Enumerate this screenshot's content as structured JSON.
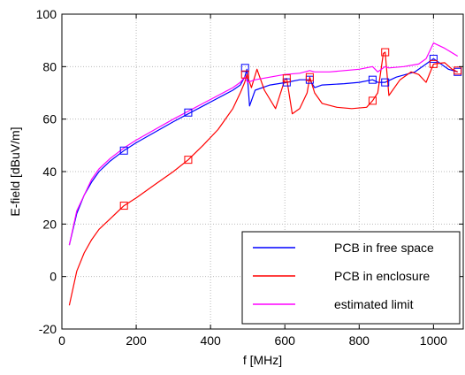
{
  "chart_data": {
    "type": "line",
    "title": "",
    "xlabel": "f [MHz]",
    "ylabel": "E-field [dBuV/m]",
    "xlim": [
      0,
      1080
    ],
    "ylim": [
      -20,
      100
    ],
    "xticks": [
      0,
      200,
      400,
      600,
      800,
      1000
    ],
    "yticks": [
      -20,
      0,
      20,
      40,
      60,
      80,
      100
    ],
    "grid": true,
    "legend_position": "bottom-right",
    "series": [
      {
        "name": "PCB in free space",
        "color": "#0000ff",
        "x": [
          20,
          40,
          60,
          80,
          100,
          130,
          167,
          200,
          250,
          300,
          340,
          380,
          420,
          460,
          480,
          492,
          498,
          505,
          520,
          560,
          605,
          640,
          667,
          680,
          700,
          760,
          800,
          836,
          850,
          870,
          900,
          950,
          1000,
          1040,
          1065
        ],
        "y": [
          12,
          24,
          31,
          36,
          40,
          44,
          48,
          51,
          55,
          59,
          62,
          65,
          68,
          71,
          73,
          76,
          79,
          65,
          71,
          73,
          74,
          75,
          75,
          72,
          73,
          73.5,
          74,
          75,
          74,
          74,
          76,
          78,
          83,
          79,
          78
        ],
        "markers_x": [
          167,
          340,
          493,
          605,
          667,
          836,
          870,
          1000,
          1065
        ],
        "markers_y": [
          48,
          62.5,
          79.5,
          74,
          75,
          75,
          74,
          83,
          78
        ]
      },
      {
        "name": "PCB in enclosure",
        "color": "#ff0000",
        "x": [
          20,
          40,
          60,
          80,
          100,
          130,
          167,
          200,
          250,
          300,
          340,
          380,
          420,
          460,
          480,
          492,
          498,
          510,
          525,
          545,
          575,
          600,
          605,
          620,
          640,
          660,
          667,
          680,
          700,
          740,
          780,
          820,
          836,
          850,
          865,
          870,
          880,
          910,
          940,
          960,
          980,
          1000,
          1030,
          1050,
          1065
        ],
        "y": [
          -11,
          2,
          9,
          14,
          18,
          22,
          27,
          30,
          35,
          40,
          44.5,
          50,
          56,
          64,
          70,
          74,
          77,
          72,
          79,
          71,
          64,
          75,
          75.5,
          62,
          64,
          70,
          76,
          70,
          66,
          64.5,
          64,
          64.5,
          67,
          70,
          85,
          85.5,
          69,
          75,
          78,
          77,
          74,
          81,
          81.5,
          79,
          78
        ],
        "markers_x": [
          167,
          340,
          493,
          605,
          667,
          836,
          870,
          1000,
          1065
        ],
        "markers_y": [
          27,
          44.5,
          77,
          75.5,
          76,
          67,
          85.5,
          81,
          78.5
        ]
      },
      {
        "name": "estimated limit",
        "color": "#ff00ff",
        "x": [
          20,
          40,
          60,
          80,
          100,
          130,
          167,
          200,
          250,
          300,
          340,
          380,
          420,
          460,
          480,
          492,
          500,
          520,
          560,
          600,
          640,
          667,
          680,
          720,
          760,
          800,
          836,
          850,
          870,
          880,
          920,
          960,
          980,
          1000,
          1030,
          1065
        ],
        "y": [
          12,
          25,
          31,
          37,
          41,
          45,
          49,
          52,
          56,
          60,
          63,
          66,
          69,
          72,
          74,
          76,
          74,
          75,
          76,
          77,
          77.5,
          78.5,
          78,
          78,
          78.5,
          79,
          80,
          78,
          80,
          79.5,
          80,
          81,
          83,
          89,
          87,
          84
        ]
      }
    ]
  }
}
